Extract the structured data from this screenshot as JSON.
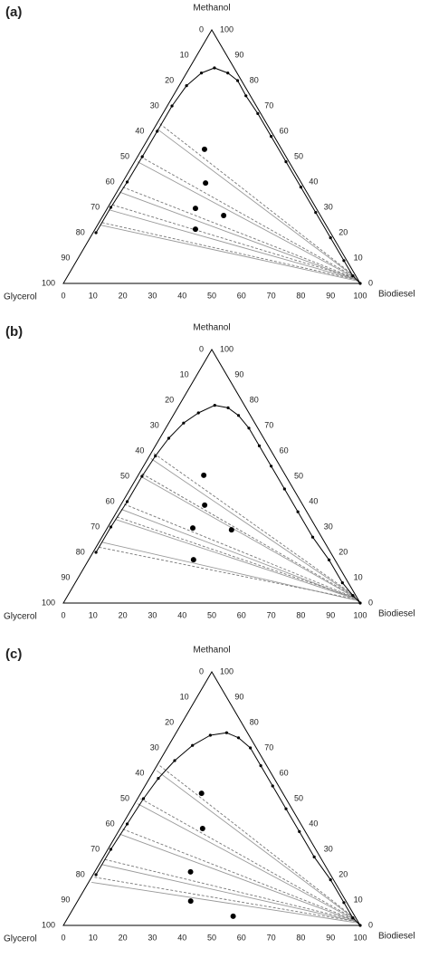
{
  "chart_data": [
    {
      "type": "ternary",
      "label": "(a)",
      "top_vertex": "Methanol",
      "left_vertex": "Glycerol",
      "right_vertex": "Biodiesel",
      "ticks": [
        0,
        10,
        20,
        30,
        40,
        50,
        60,
        70,
        80,
        90,
        100
      ],
      "binodal": {
        "color": "#000000",
        "biodiesel": [
          1,
          1,
          1.5,
          1.6,
          1.6,
          1.6,
          2.5,
          5,
          8.4,
          13.9,
          18.7,
          24.5,
          32,
          41,
          51,
          61,
          71,
          81,
          90,
          96,
          100
        ],
        "methanol": [
          20,
          30,
          40,
          50,
          60,
          70,
          78,
          83,
          85,
          83,
          80,
          74,
          67,
          58,
          48,
          38,
          28,
          18,
          9,
          3,
          0
        ]
      },
      "feeds": {
        "color": "#000000",
        "biodiesel": [
          21.1,
          28.1,
          29.7,
          40.6,
          33.8
        ],
        "methanol": [
          52.9,
          39.6,
          29.6,
          26.8,
          21.4
        ]
      },
      "experimental_tie_lines": {
        "color": "#999999",
        "lines": [
          {
            "biodiesel": [
              1,
              97
            ],
            "methanol": [
              61,
              2.5
            ]
          },
          {
            "biodiesel": [
              1,
              97.5
            ],
            "methanol": [
              48,
              2
            ]
          },
          {
            "biodiesel": [
              1,
              98
            ],
            "methanol": [
              36,
              1.5
            ]
          },
          {
            "biodiesel": [
              1,
              98
            ],
            "methanol": [
              29,
              1.5
            ]
          },
          {
            "biodiesel": [
              1,
              98.5
            ],
            "methanol": [
              23,
              1
            ]
          }
        ]
      },
      "calculated_tie_lines": {
        "color": "#777777",
        "lines": [
          {
            "biodiesel": [
              1,
              96.5
            ],
            "methanol": [
              63,
              3
            ]
          },
          {
            "biodiesel": [
              1,
              97
            ],
            "methanol": [
              50,
              2.5
            ]
          },
          {
            "biodiesel": [
              1,
              97.5
            ],
            "methanol": [
              38,
              2
            ]
          },
          {
            "biodiesel": [
              1,
              97.5
            ],
            "methanol": [
              31,
              2
            ]
          },
          {
            "biodiesel": [
              1,
              98
            ],
            "methanol": [
              24,
              1.5
            ]
          }
        ]
      }
    },
    {
      "type": "ternary",
      "label": "(b)",
      "top_vertex": "Methanol",
      "left_vertex": "Glycerol",
      "right_vertex": "Biodiesel",
      "ticks": [
        0,
        10,
        20,
        30,
        40,
        50,
        60,
        70,
        80,
        90,
        100
      ],
      "binodal": {
        "color": "#000000",
        "biodiesel": [
          1,
          1,
          1.5,
          1.5,
          2,
          3,
          5,
          8,
          12,
          17,
          22,
          28,
          35,
          43,
          52,
          61,
          71,
          81,
          90,
          96,
          100
        ],
        "methanol": [
          20,
          30,
          40,
          50,
          58,
          65,
          71,
          75,
          78,
          77,
          74,
          69,
          62,
          54,
          45,
          36,
          26,
          17,
          8,
          3,
          0
        ]
      },
      "feeds": {
        "color": "#000000",
        "biodiesel": [
          22.1,
          28.3,
          28.8,
          42.2,
          35.3
        ],
        "methanol": [
          50.4,
          38.6,
          29.6,
          28.9,
          17.1
        ]
      },
      "experimental_tie_lines": {
        "color": "#999999",
        "lines": [
          {
            "biodiesel": [
              1,
              97
            ],
            "methanol": [
              57,
              2.5
            ]
          },
          {
            "biodiesel": [
              1,
              97.5
            ],
            "methanol": [
              50,
              2
            ]
          },
          {
            "biodiesel": [
              1,
              98
            ],
            "methanol": [
              37,
              1.5
            ]
          },
          {
            "biodiesel": [
              1,
              98
            ],
            "methanol": [
              33,
              1.5
            ]
          },
          {
            "biodiesel": [
              1,
              98.5
            ],
            "methanol": [
              24,
              1
            ]
          }
        ]
      },
      "calculated_tie_lines": {
        "color": "#777777",
        "lines": [
          {
            "biodiesel": [
              1,
              96.5
            ],
            "methanol": [
              59,
              3
            ]
          },
          {
            "biodiesel": [
              1,
              97
            ],
            "methanol": [
              51,
              2.5
            ]
          },
          {
            "biodiesel": [
              1,
              97.5
            ],
            "methanol": [
              39,
              2
            ]
          },
          {
            "biodiesel": [
              1,
              97.5
            ],
            "methanol": [
              34,
              2
            ]
          },
          {
            "biodiesel": [
              1,
              98
            ],
            "methanol": [
              22,
              1.5
            ]
          }
        ]
      }
    },
    {
      "type": "ternary",
      "label": "(c)",
      "top_vertex": "Methanol",
      "left_vertex": "Glycerol",
      "right_vertex": "Biodiesel",
      "ticks": [
        0,
        10,
        20,
        30,
        40,
        50,
        60,
        70,
        80,
        90,
        100
      ],
      "binodal": {
        "color": "#000000",
        "biodiesel": [
          1,
          1,
          1.5,
          2,
          3,
          5,
          8,
          12,
          17,
          22,
          28,
          35,
          43,
          52,
          61,
          71,
          81,
          90,
          96,
          100
        ],
        "methanol": [
          20,
          30,
          40,
          50,
          58,
          65,
          71,
          75,
          76,
          74,
          70,
          63,
          55,
          46,
          37,
          27,
          18,
          9,
          3,
          0
        ]
      },
      "feeds": {
        "color": "#000000",
        "biodiesel": [
          20.5,
          27.8,
          32.3,
          38.1,
          55.4
        ],
        "methanol": [
          52.1,
          38.2,
          21.1,
          9.6,
          3.6
        ]
      },
      "experimental_tie_lines": {
        "color": "#999999",
        "lines": [
          {
            "biodiesel": [
              1,
              97
            ],
            "methanol": [
              61,
              2.5
            ]
          },
          {
            "biodiesel": [
              1,
              97.5
            ],
            "methanol": [
              48,
              2
            ]
          },
          {
            "biodiesel": [
              1,
              98
            ],
            "methanol": [
              36,
              1.5
            ]
          },
          {
            "biodiesel": [
              1,
              98
            ],
            "methanol": [
              24,
              1.5
            ]
          },
          {
            "biodiesel": [
              1,
              98.5
            ],
            "methanol": [
              17,
              1
            ]
          }
        ]
      },
      "calculated_tie_lines": {
        "color": "#777777",
        "lines": [
          {
            "biodiesel": [
              1,
              96.5
            ],
            "methanol": [
              63,
              3
            ]
          },
          {
            "biodiesel": [
              1,
              97
            ],
            "methanol": [
              50,
              2.5
            ]
          },
          {
            "biodiesel": [
              1,
              97.5
            ],
            "methanol": [
              38,
              2
            ]
          },
          {
            "biodiesel": [
              1,
              97.5
            ],
            "methanol": [
              26,
              2
            ]
          },
          {
            "biodiesel": [
              1,
              98
            ],
            "methanol": [
              19,
              1.5
            ]
          }
        ]
      }
    }
  ]
}
